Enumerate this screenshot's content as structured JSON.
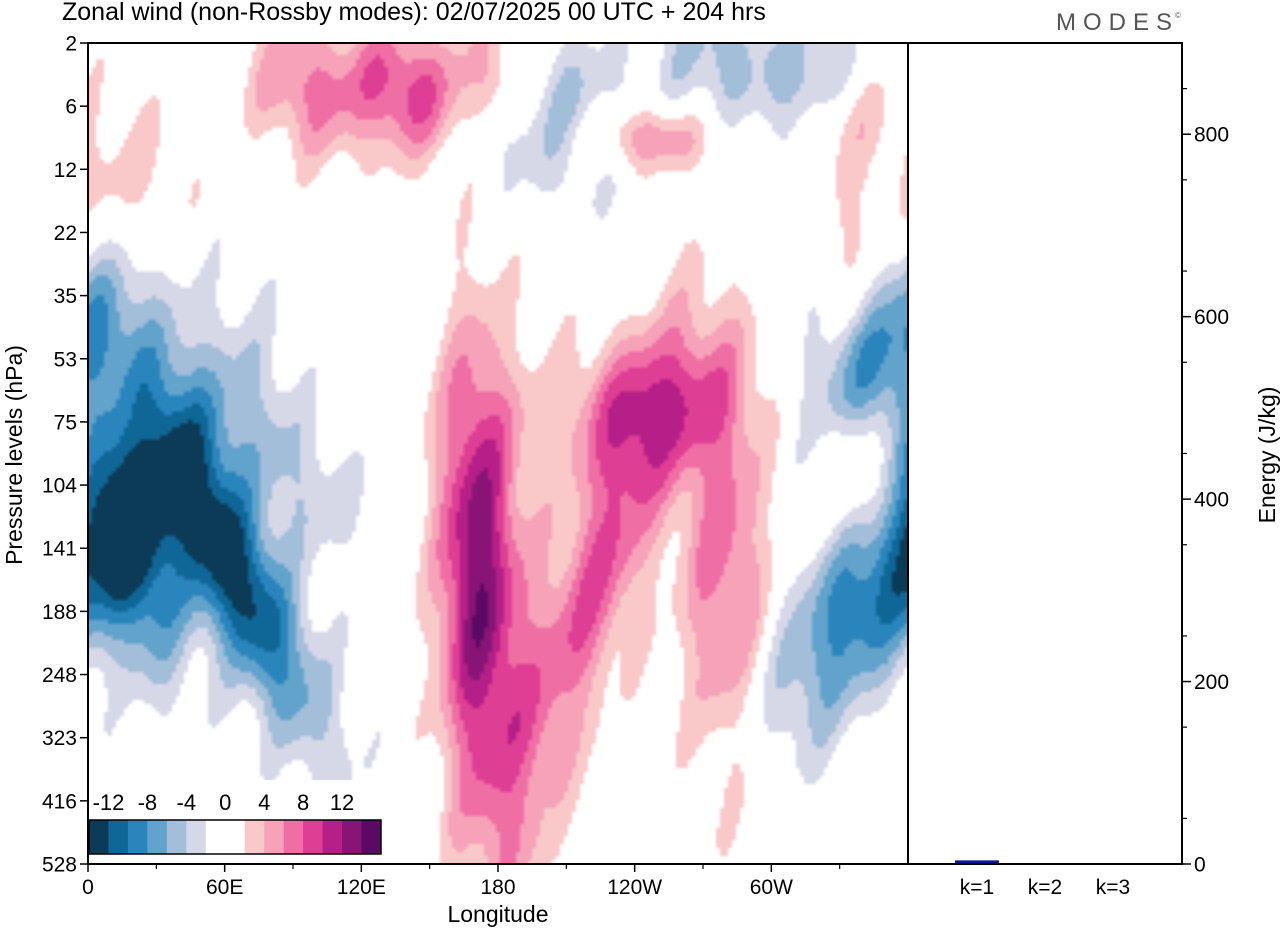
{
  "header": {
    "title": "Zonal wind (non-Rossby modes):  02/07/2025  00 UTC  + 204 hrs",
    "brand": "MODES",
    "brand_mark": "©"
  },
  "chart_data": [
    {
      "type": "heatmap",
      "title": "Zonal wind (non-Rossby modes):  02/07/2025  00 UTC  + 204 hrs",
      "xlabel": "Longitude",
      "ylabel": "Pressure levels (hPa)",
      "x_ticks": [
        "0",
        "60E",
        "120E",
        "180",
        "120W",
        "60W"
      ],
      "x_tick_degrees": [
        0,
        60,
        120,
        180,
        240,
        300
      ],
      "xlim": [
        0,
        360
      ],
      "y_ticks": [
        "2",
        "6",
        "12",
        "22",
        "35",
        "53",
        "75",
        "104",
        "141",
        "188",
        "248",
        "323",
        "416",
        "528"
      ],
      "colorbar_labels": [
        "-12",
        "-8",
        "-4",
        "0",
        "4",
        "8",
        "12"
      ],
      "colorbar_levels": [
        -12,
        -8,
        -4,
        0,
        4,
        8,
        12
      ],
      "colorbar_colors": [
        "#0c3b57",
        "#0f6797",
        "#2a85bd",
        "#62a3cc",
        "#a3bed9",
        "#d6d8e8",
        "#ffffff",
        "#ffffff",
        "#f9c9c9",
        "#f6a2b8",
        "#ef6ea4",
        "#de3e93",
        "#b51f87",
        "#881576",
        "#5a0a63"
      ],
      "features": [
        {
          "lon": 58,
          "lev": 141,
          "value": -14,
          "sx": 14,
          "sy": 2.2,
          "rot": -0.45
        },
        {
          "lon": 20,
          "lev": 141,
          "value": -10,
          "sx": 14,
          "sy": 1.5,
          "rot": -0.2
        },
        {
          "lon": 90,
          "lev": 90,
          "value": -6,
          "sx": 22,
          "sy": 1.2,
          "rot": -0.55
        },
        {
          "lon": 355,
          "lev": 150,
          "value": -11,
          "sx": 20,
          "sy": 2.2,
          "rot": 0.6
        },
        {
          "lon": 340,
          "lev": 60,
          "value": -7,
          "sx": 18,
          "sy": 1.2,
          "rot": 0.6
        },
        {
          "lon": 280,
          "lev": 3,
          "value": -5,
          "sx": 18,
          "sy": 0.8,
          "rot": 0
        },
        {
          "lon": 315,
          "lev": 5,
          "value": -7,
          "sx": 12,
          "sy": 0.8,
          "rot": 0.4
        },
        {
          "lon": 205,
          "lev": 7,
          "value": -5,
          "sx": 28,
          "sy": 0.9,
          "rot": 0
        },
        {
          "lon": 15,
          "lev": 35,
          "value": -3,
          "sx": 25,
          "sy": 1.5,
          "rot": 0
        },
        {
          "lon": 170,
          "lev": 150,
          "value": 12,
          "sx": 12,
          "sy": 2.5,
          "rot": 0
        },
        {
          "lon": 225,
          "lev": 155,
          "value": 8,
          "sx": 14,
          "sy": 2.5,
          "rot": 0.3
        },
        {
          "lon": 280,
          "lev": 160,
          "value": 7,
          "sx": 14,
          "sy": 2.5,
          "rot": 0
        },
        {
          "lon": 245,
          "lev": 70,
          "value": 7,
          "sx": 30,
          "sy": 0.8,
          "rot": -0.25
        },
        {
          "lon": 25,
          "lev": 85,
          "value": 6,
          "sx": 14,
          "sy": 1.1,
          "rot": -0.3
        },
        {
          "lon": 140,
          "lev": 5,
          "value": 9,
          "sx": 18,
          "sy": 0.8,
          "rot": -0.55
        },
        {
          "lon": 95,
          "lev": 5,
          "value": 6,
          "sx": 16,
          "sy": 0.8,
          "rot": -0.4
        },
        {
          "lon": 245,
          "lev": 9,
          "value": 7,
          "sx": 20,
          "sy": 0.4,
          "rot": 0
        },
        {
          "lon": 185,
          "lev": 330,
          "value": 4,
          "sx": 14,
          "sy": 3,
          "rot": 0
        },
        {
          "lon": 340,
          "lev": 100,
          "value": 5,
          "sx": 18,
          "sy": 0.9,
          "rot": -0.4
        },
        {
          "lon": 105,
          "lev": 80,
          "value": 3,
          "sx": 22,
          "sy": 0.9,
          "rot": -0.3
        },
        {
          "lon": 15,
          "lev": 15,
          "value": 4,
          "sx": 22,
          "sy": 1.0,
          "rot": 0
        },
        {
          "lon": 180,
          "lev": 4,
          "value": 5,
          "sx": 12,
          "sy": 0.6,
          "rot": -0.4
        },
        {
          "lon": 320,
          "lev": 7,
          "value": 4,
          "sx": 20,
          "sy": 0.6,
          "rot": -0.3
        },
        {
          "lon": 335,
          "lev": 25,
          "value": 3,
          "sx": 10,
          "sy": 0.8,
          "rot": 0
        }
      ]
    },
    {
      "type": "bar",
      "categories": [
        "k=1",
        "k=2",
        "k=3"
      ],
      "values": [
        4,
        0.8,
        0.6
      ],
      "ylabel": "Energy (J/kg)",
      "y_ticks": [
        "0",
        "200",
        "400",
        "600",
        "800"
      ],
      "ylim": [
        0,
        900
      ],
      "bar_color": "#0a1a8c"
    }
  ]
}
